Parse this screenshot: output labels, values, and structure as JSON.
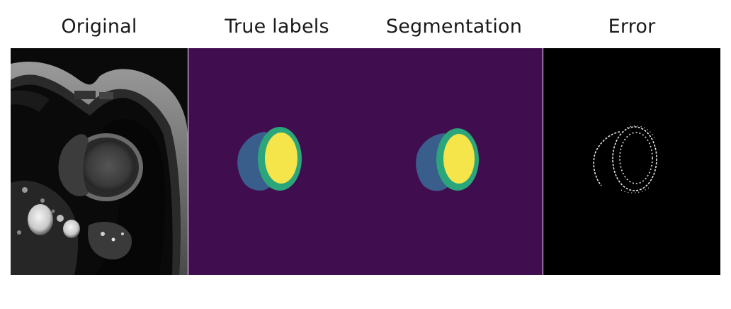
{
  "panels": [
    {
      "title": "Original"
    },
    {
      "title": "True labels"
    },
    {
      "title": "Segmentation"
    },
    {
      "title": "Error"
    }
  ],
  "colors": {
    "background_label": "#400e4f",
    "label_1": "#3a5e8c",
    "label_2": "#2ba57a",
    "label_3": "#f5e44a"
  }
}
